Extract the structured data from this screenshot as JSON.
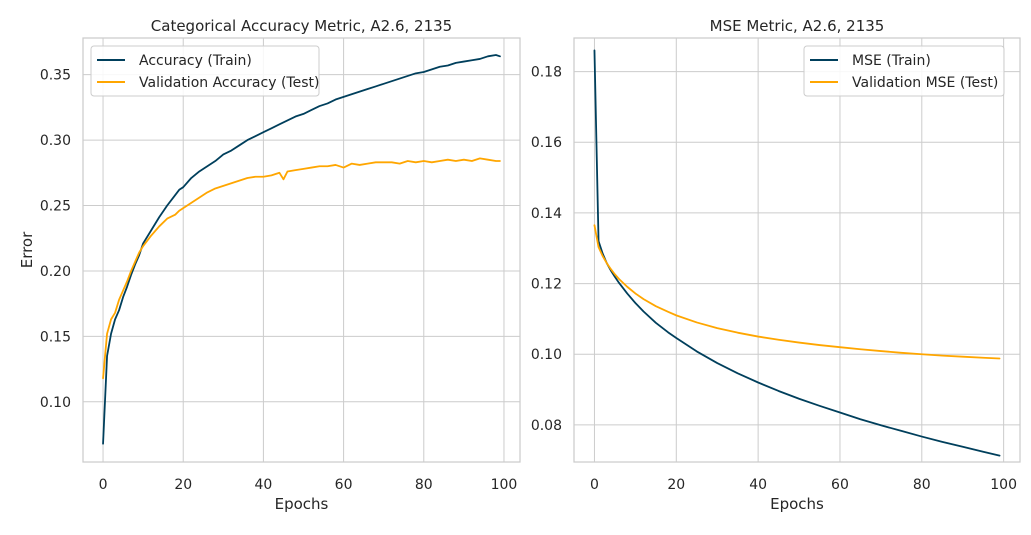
{
  "colors": {
    "train": "#003f5c",
    "test": "#ffa600",
    "grid": "#cccccc",
    "spine": "#cccccc",
    "text": "#262626"
  },
  "chart_data": [
    {
      "type": "line",
      "title": "Categorical Accuracy Metric, A2.6, 2135",
      "xlabel": "Epochs",
      "ylabel": "Error",
      "xlim": [
        -5,
        104
      ],
      "ylim": [
        0.054,
        0.378
      ],
      "xticks": [
        0,
        20,
        40,
        60,
        80,
        100
      ],
      "yticks": [
        0.1,
        0.15,
        0.2,
        0.25,
        0.3,
        0.35
      ],
      "xtick_labels": [
        "0",
        "20",
        "40",
        "60",
        "80",
        "100"
      ],
      "ytick_labels": [
        "0.10",
        "0.15",
        "0.20",
        "0.25",
        "0.30",
        "0.35"
      ],
      "grid": true,
      "legend": "upper left",
      "series": [
        {
          "name": "Accuracy (Train)",
          "color": "#003f5c",
          "x": [
            0,
            1,
            2,
            3,
            4,
            5,
            6,
            7,
            8,
            9,
            10,
            12,
            14,
            16,
            18,
            19,
            20,
            22,
            24,
            26,
            28,
            30,
            32,
            34,
            36,
            38,
            40,
            42,
            44,
            46,
            48,
            50,
            52,
            54,
            56,
            58,
            60,
            62,
            64,
            66,
            68,
            70,
            72,
            74,
            76,
            78,
            80,
            82,
            84,
            86,
            88,
            90,
            92,
            94,
            96,
            98,
            99
          ],
          "y": [
            0.068,
            0.135,
            0.152,
            0.163,
            0.17,
            0.18,
            0.188,
            0.197,
            0.205,
            0.212,
            0.221,
            0.231,
            0.241,
            0.25,
            0.258,
            0.262,
            0.264,
            0.271,
            0.276,
            0.28,
            0.284,
            0.289,
            0.292,
            0.296,
            0.3,
            0.303,
            0.306,
            0.309,
            0.312,
            0.315,
            0.318,
            0.32,
            0.323,
            0.326,
            0.328,
            0.331,
            0.333,
            0.335,
            0.337,
            0.339,
            0.341,
            0.343,
            0.345,
            0.347,
            0.349,
            0.351,
            0.352,
            0.354,
            0.356,
            0.357,
            0.359,
            0.36,
            0.361,
            0.362,
            0.364,
            0.365,
            0.364
          ]
        },
        {
          "name": "Validation Accuracy (Test)",
          "color": "#ffa600",
          "x": [
            0,
            1,
            2,
            3,
            4,
            5,
            6,
            7,
            8,
            9,
            10,
            12,
            14,
            16,
            18,
            19,
            20,
            22,
            24,
            26,
            28,
            30,
            32,
            34,
            36,
            38,
            40,
            42,
            44,
            45,
            46,
            48,
            50,
            52,
            54,
            56,
            58,
            60,
            62,
            64,
            66,
            68,
            70,
            72,
            74,
            76,
            78,
            80,
            82,
            84,
            86,
            88,
            90,
            92,
            94,
            96,
            98,
            99
          ],
          "y": [
            0.118,
            0.152,
            0.163,
            0.168,
            0.178,
            0.185,
            0.192,
            0.2,
            0.207,
            0.214,
            0.219,
            0.227,
            0.234,
            0.24,
            0.243,
            0.246,
            0.248,
            0.252,
            0.256,
            0.26,
            0.263,
            0.265,
            0.267,
            0.269,
            0.271,
            0.272,
            0.272,
            0.273,
            0.275,
            0.27,
            0.276,
            0.277,
            0.278,
            0.279,
            0.28,
            0.28,
            0.281,
            0.279,
            0.282,
            0.281,
            0.282,
            0.283,
            0.283,
            0.283,
            0.282,
            0.284,
            0.283,
            0.284,
            0.283,
            0.284,
            0.285,
            0.284,
            0.285,
            0.284,
            0.286,
            0.285,
            0.284,
            0.284
          ]
        }
      ]
    },
    {
      "type": "line",
      "title": "MSE Metric, A2.6, 2135",
      "xlabel": "Epochs",
      "ylabel": "",
      "xlim": [
        -5,
        104
      ],
      "ylim": [
        0.0695,
        0.1895
      ],
      "xticks": [
        0,
        20,
        40,
        60,
        80,
        100
      ],
      "yticks": [
        0.08,
        0.1,
        0.12,
        0.14,
        0.16,
        0.18
      ],
      "xtick_labels": [
        "0",
        "20",
        "40",
        "60",
        "80",
        "100"
      ],
      "ytick_labels": [
        "0.08",
        "0.10",
        "0.12",
        "0.14",
        "0.16",
        "0.18"
      ],
      "grid": true,
      "legend": "upper right",
      "series": [
        {
          "name": "MSE (Train)",
          "color": "#003f5c",
          "x": [
            0,
            1,
            2,
            3,
            4,
            5,
            6,
            8,
            10,
            12,
            15,
            18,
            20,
            25,
            30,
            35,
            40,
            45,
            50,
            55,
            60,
            65,
            70,
            75,
            80,
            85,
            90,
            95,
            99
          ],
          "y": [
            0.186,
            0.132,
            0.1285,
            0.1258,
            0.1237,
            0.1219,
            0.1202,
            0.1172,
            0.1145,
            0.1121,
            0.1089,
            0.1062,
            0.1046,
            0.1008,
            0.0975,
            0.0946,
            0.092,
            0.0896,
            0.0874,
            0.0854,
            0.0835,
            0.0816,
            0.0799,
            0.0783,
            0.0767,
            0.0752,
            0.0738,
            0.0724,
            0.0713
          ]
        },
        {
          "name": "Validation MSE (Test)",
          "color": "#ffa600",
          "x": [
            0,
            1,
            2,
            3,
            4,
            5,
            6,
            8,
            10,
            12,
            15,
            18,
            20,
            25,
            30,
            35,
            40,
            45,
            50,
            55,
            60,
            65,
            70,
            75,
            80,
            85,
            90,
            95,
            99
          ],
          "y": [
            0.1365,
            0.1303,
            0.1278,
            0.1258,
            0.1241,
            0.1226,
            0.1213,
            0.1191,
            0.1172,
            0.1156,
            0.1136,
            0.112,
            0.111,
            0.109,
            0.1074,
            0.1061,
            0.105,
            0.1041,
            0.1033,
            0.1026,
            0.102,
            0.1014,
            0.1009,
            0.1004,
            0.1,
            0.0996,
            0.0993,
            0.099,
            0.0988
          ]
        }
      ]
    }
  ]
}
